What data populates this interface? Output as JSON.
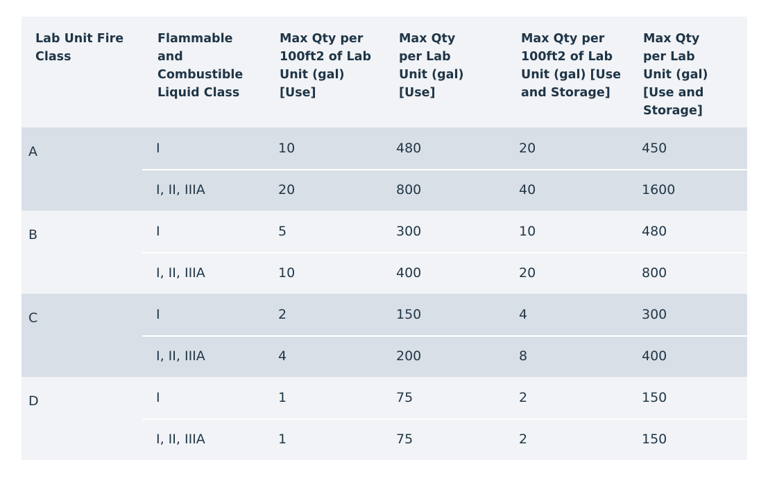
{
  "table": {
    "headers": [
      "Lab Unit Fire Class",
      "Flammable and Combustible Liquid Class",
      "Max Qty per 100ft2 of Lab Unit (gal) [Use]",
      "Max Qty per Lab Unit (gal) [Use]",
      "Max Qty per 100ft2 of Lab Unit (gal) [Use and Storage]",
      "Max Qty per Lab Unit (gal) [Use and Storage]"
    ],
    "header_lines": [
      [
        "Lab Unit Fire",
        "Class"
      ],
      [
        "Flammable",
        "and",
        "Combustible",
        "Liquid Class"
      ],
      [
        "Max Qty per",
        "100ft2 of Lab",
        "Unit (gal)",
        "[Use]"
      ],
      [
        "Max Qty",
        "per Lab",
        "Unit (gal)",
        "[Use]"
      ],
      [
        "Max Qty per",
        "100ft2 of Lab",
        "Unit (gal) [Use",
        "and Storage]"
      ],
      [
        "Max Qty",
        "per Lab",
        "Unit (gal)",
        "[Use and",
        "Storage]"
      ]
    ],
    "groups": [
      {
        "fire_class": "A",
        "rows": [
          [
            "I",
            "10",
            "480",
            "20",
            "450"
          ],
          [
            "I, II, IIIA",
            "20",
            "800",
            "40",
            "1600"
          ]
        ]
      },
      {
        "fire_class": "B",
        "rows": [
          [
            "I",
            "5",
            "300",
            "10",
            "480"
          ],
          [
            "I, II, IIIA",
            "10",
            "400",
            "20",
            "800"
          ]
        ]
      },
      {
        "fire_class": "C",
        "rows": [
          [
            "I",
            "2",
            "150",
            "4",
            "300"
          ],
          [
            "I, II, IIIA",
            "4",
            "200",
            "8",
            "400"
          ]
        ]
      },
      {
        "fire_class": "D",
        "rows": [
          [
            "I",
            "1",
            "75",
            "2",
            "150"
          ],
          [
            "I, II, IIIA",
            "1",
            "75",
            "2",
            "150"
          ]
        ]
      }
    ]
  },
  "colors": {
    "text": "#1f3547",
    "header_bg": "#f1f3f6",
    "shaded_group_bg": "#d9dfe6",
    "light_group_bg": "#f1f3f6",
    "divider": "#ffffff"
  }
}
